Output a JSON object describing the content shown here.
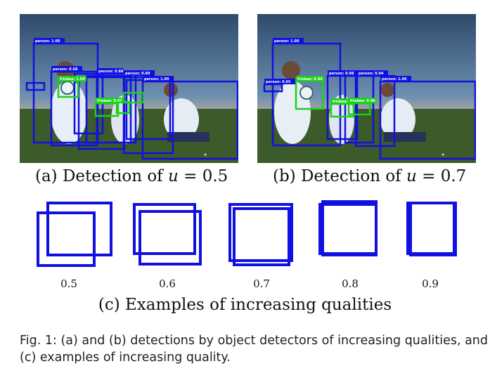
{
  "panel_a": {
    "caption_prefix": "(a) Detection of ",
    "caption_var": "u",
    "caption_suffix": " = 0.5",
    "labels": [
      "person: 1.00",
      "person: 0.68",
      "person: 0.89",
      "person: 0.88",
      "frisbee: 1.00",
      "frisbee: 0.97",
      "person: 1.00"
    ]
  },
  "panel_b": {
    "caption_prefix": "(b) Detection of ",
    "caption_var": "u",
    "caption_suffix": " = 0.7",
    "labels": [
      "person: 1.00",
      "person: 0.98",
      "person: 0.94",
      "person: 0.65",
      "frisbee: 0.99",
      "frisbee: 0.99",
      "frisbee: 0.98",
      "person: 1.00"
    ]
  },
  "panel_c": {
    "qualities": [
      "0.5",
      "0.6",
      "0.7",
      "0.8",
      "0.9"
    ],
    "caption": "(c) Examples of increasing qualities"
  },
  "figure_caption": "Fig. 1: (a) and (b) detections by object detectors of increasing qualities, and (c) examples of increasing quality.",
  "colors": {
    "box": "#1010e0",
    "frisbee_box": "#19d119",
    "sky_top": "#35506f",
    "grass": "#3c5a2a"
  }
}
